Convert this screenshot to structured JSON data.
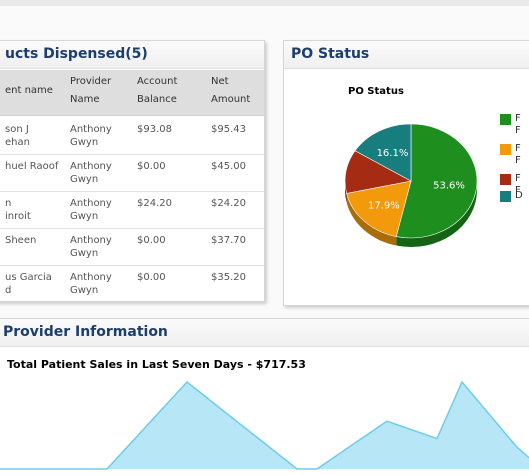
{
  "products_panel": {
    "title": "ucts Dispensed(5)",
    "columns": [
      [
        "ent name"
      ],
      [
        "Provider",
        "Name"
      ],
      [
        "Account",
        "Balance"
      ],
      [
        "Net",
        "Amount"
      ]
    ],
    "rows": [
      {
        "patient": [
          "son J",
          "ehan"
        ],
        "provider": [
          "Anthony",
          "Gwyn"
        ],
        "balance": "$93.08",
        "net": "$95.43"
      },
      {
        "patient": [
          "huel Raoof"
        ],
        "provider": [
          "Anthony",
          "Gwyn"
        ],
        "balance": "$0.00",
        "net": "$45.00"
      },
      {
        "patient": [
          "n",
          "inroit"
        ],
        "provider": [
          "Anthony",
          "Gwyn"
        ],
        "balance": "$24.20",
        "net": "$24.20"
      },
      {
        "patient": [
          "Sheen"
        ],
        "provider": [
          "Anthony",
          "Gwyn"
        ],
        "balance": "$0.00",
        "net": "$37.70"
      },
      {
        "patient": [
          "us Garcia",
          "d"
        ],
        "provider": [
          "Anthony",
          "Gwyn"
        ],
        "balance": "$0.00",
        "net": "$35.20"
      }
    ]
  },
  "po_panel": {
    "title": "PO Status",
    "chart_title": "PO Status",
    "legend": [
      {
        "color": "#1e8f1e",
        "label": [
          "F",
          "F"
        ]
      },
      {
        "color": "#f29a0c",
        "label": [
          "F",
          "F"
        ]
      },
      {
        "color": "#a52c12",
        "label": [
          "F",
          "F"
        ]
      },
      {
        "color": "#187d7d",
        "label": [
          "D"
        ]
      }
    ]
  },
  "provider_panel": {
    "title": "Provider Information",
    "sales_title": "Total Patient Sales in Last Seven Days - $717.53"
  },
  "chart_data": [
    {
      "type": "pie",
      "title": "PO Status",
      "slices": [
        {
          "value": 53.6,
          "label": "53.6%",
          "color": "#1e8f1e"
        },
        {
          "value": 17.9,
          "label": "17.9%",
          "color": "#f29a0c"
        },
        {
          "value": 12.4,
          "label": "",
          "color": "#a52c12"
        },
        {
          "value": 16.1,
          "label": "16.1%",
          "color": "#187d7d"
        }
      ]
    },
    {
      "type": "area",
      "title": "Total Patient Sales in Last Seven Days - $717.53",
      "x": [
        0,
        1,
        2,
        3,
        4,
        5,
        6,
        7,
        8,
        9
      ],
      "values": [
        0,
        0,
        100,
        0,
        0,
        55,
        35,
        100,
        25,
        0
      ],
      "ylim": [
        0,
        100
      ],
      "color": "#6fcbea",
      "fill": "#b7e7f6"
    }
  ]
}
